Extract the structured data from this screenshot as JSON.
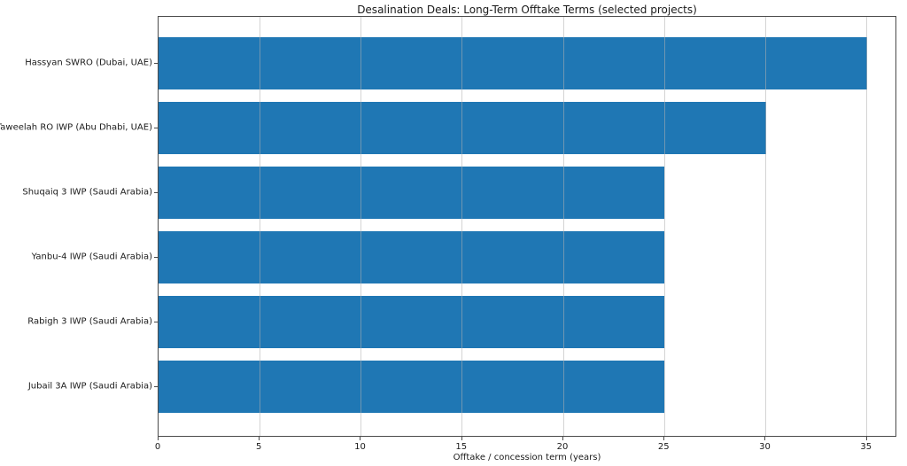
{
  "figure": {
    "title": "Desalination Deals: Long-Term Offtake Terms (selected projects)",
    "xlabel": "Offtake / concession term (years)"
  },
  "chart_data": {
    "type": "bar",
    "orientation": "horizontal",
    "title": "Desalination Deals: Long-Term Offtake Terms (selected projects)",
    "xlabel": "Offtake / concession term (years)",
    "ylabel": "",
    "categories": [
      "Hassyan SWRO (Dubai, UAE)",
      "Taweelah RO IWP (Abu Dhabi, UAE)",
      "Shuqaiq 3 IWP (Saudi Arabia)",
      "Yanbu-4 IWP (Saudi Arabia)",
      "Rabigh 3 IWP (Saudi Arabia)",
      "Jubail 3A IWP (Saudi Arabia)"
    ],
    "values": [
      35,
      30,
      25,
      25,
      25,
      25
    ],
    "xticks": [
      0,
      5,
      10,
      15,
      20,
      25,
      30,
      35
    ],
    "xlim": [
      0,
      36.5
    ],
    "grid": true,
    "grid_axis": "x",
    "legend": false,
    "bar_color": "#1f77b4",
    "grid_color": "#b0b0b0",
    "spine_color": "#4a4a4a",
    "text_color": "#1a1a1a",
    "background_color": "#ffffff"
  }
}
